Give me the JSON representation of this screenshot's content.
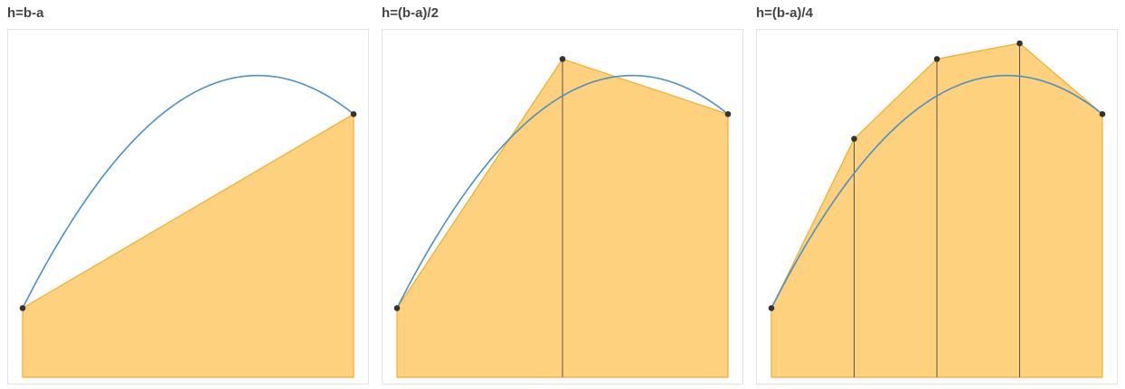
{
  "chart_data": [
    {
      "type": "area",
      "title": "h=b-a",
      "xlim": [
        0,
        1
      ],
      "ylim": [
        0,
        1
      ],
      "curve": {
        "fn": "parabola",
        "a": 0.207,
        "b": 0.662,
        "c": 0.231
      },
      "nodes_x": [
        0,
        1
      ],
      "nodes_y": [
        0.207,
        0.788
      ],
      "colors": {
        "curve": "#4a90c8",
        "fill": "#fdd17e",
        "fill_stroke": "#f2ad2d",
        "node": "#333333",
        "divider": "#555555"
      }
    },
    {
      "type": "area",
      "title": "h=(b-a)/2",
      "xlim": [
        0,
        1
      ],
      "ylim": [
        0,
        1
      ],
      "curve": {
        "fn": "parabola",
        "a": 0.207,
        "b": 0.662,
        "c": 0.231
      },
      "nodes_x": [
        0,
        0.5,
        1
      ],
      "nodes_y": [
        0.207,
        0.953,
        0.788
      ],
      "colors": {
        "curve": "#4a90c8",
        "fill": "#fdd17e",
        "fill_stroke": "#f2ad2d",
        "node": "#333333",
        "divider": "#555555"
      }
    },
    {
      "type": "area",
      "title": "h=(b-a)/4",
      "xlim": [
        0,
        1
      ],
      "ylim": [
        0,
        1
      ],
      "curve": {
        "fn": "parabola",
        "a": 0.207,
        "b": 0.662,
        "c": 0.231
      },
      "nodes_x": [
        0,
        0.25,
        0.5,
        0.75,
        1
      ],
      "nodes_y": [
        0.207,
        0.714,
        0.953,
        1.0,
        0.788
      ],
      "colors": {
        "curve": "#4a90c8",
        "fill": "#fdd17e",
        "fill_stroke": "#f2ad2d",
        "node": "#333333",
        "divider": "#555555"
      }
    }
  ]
}
